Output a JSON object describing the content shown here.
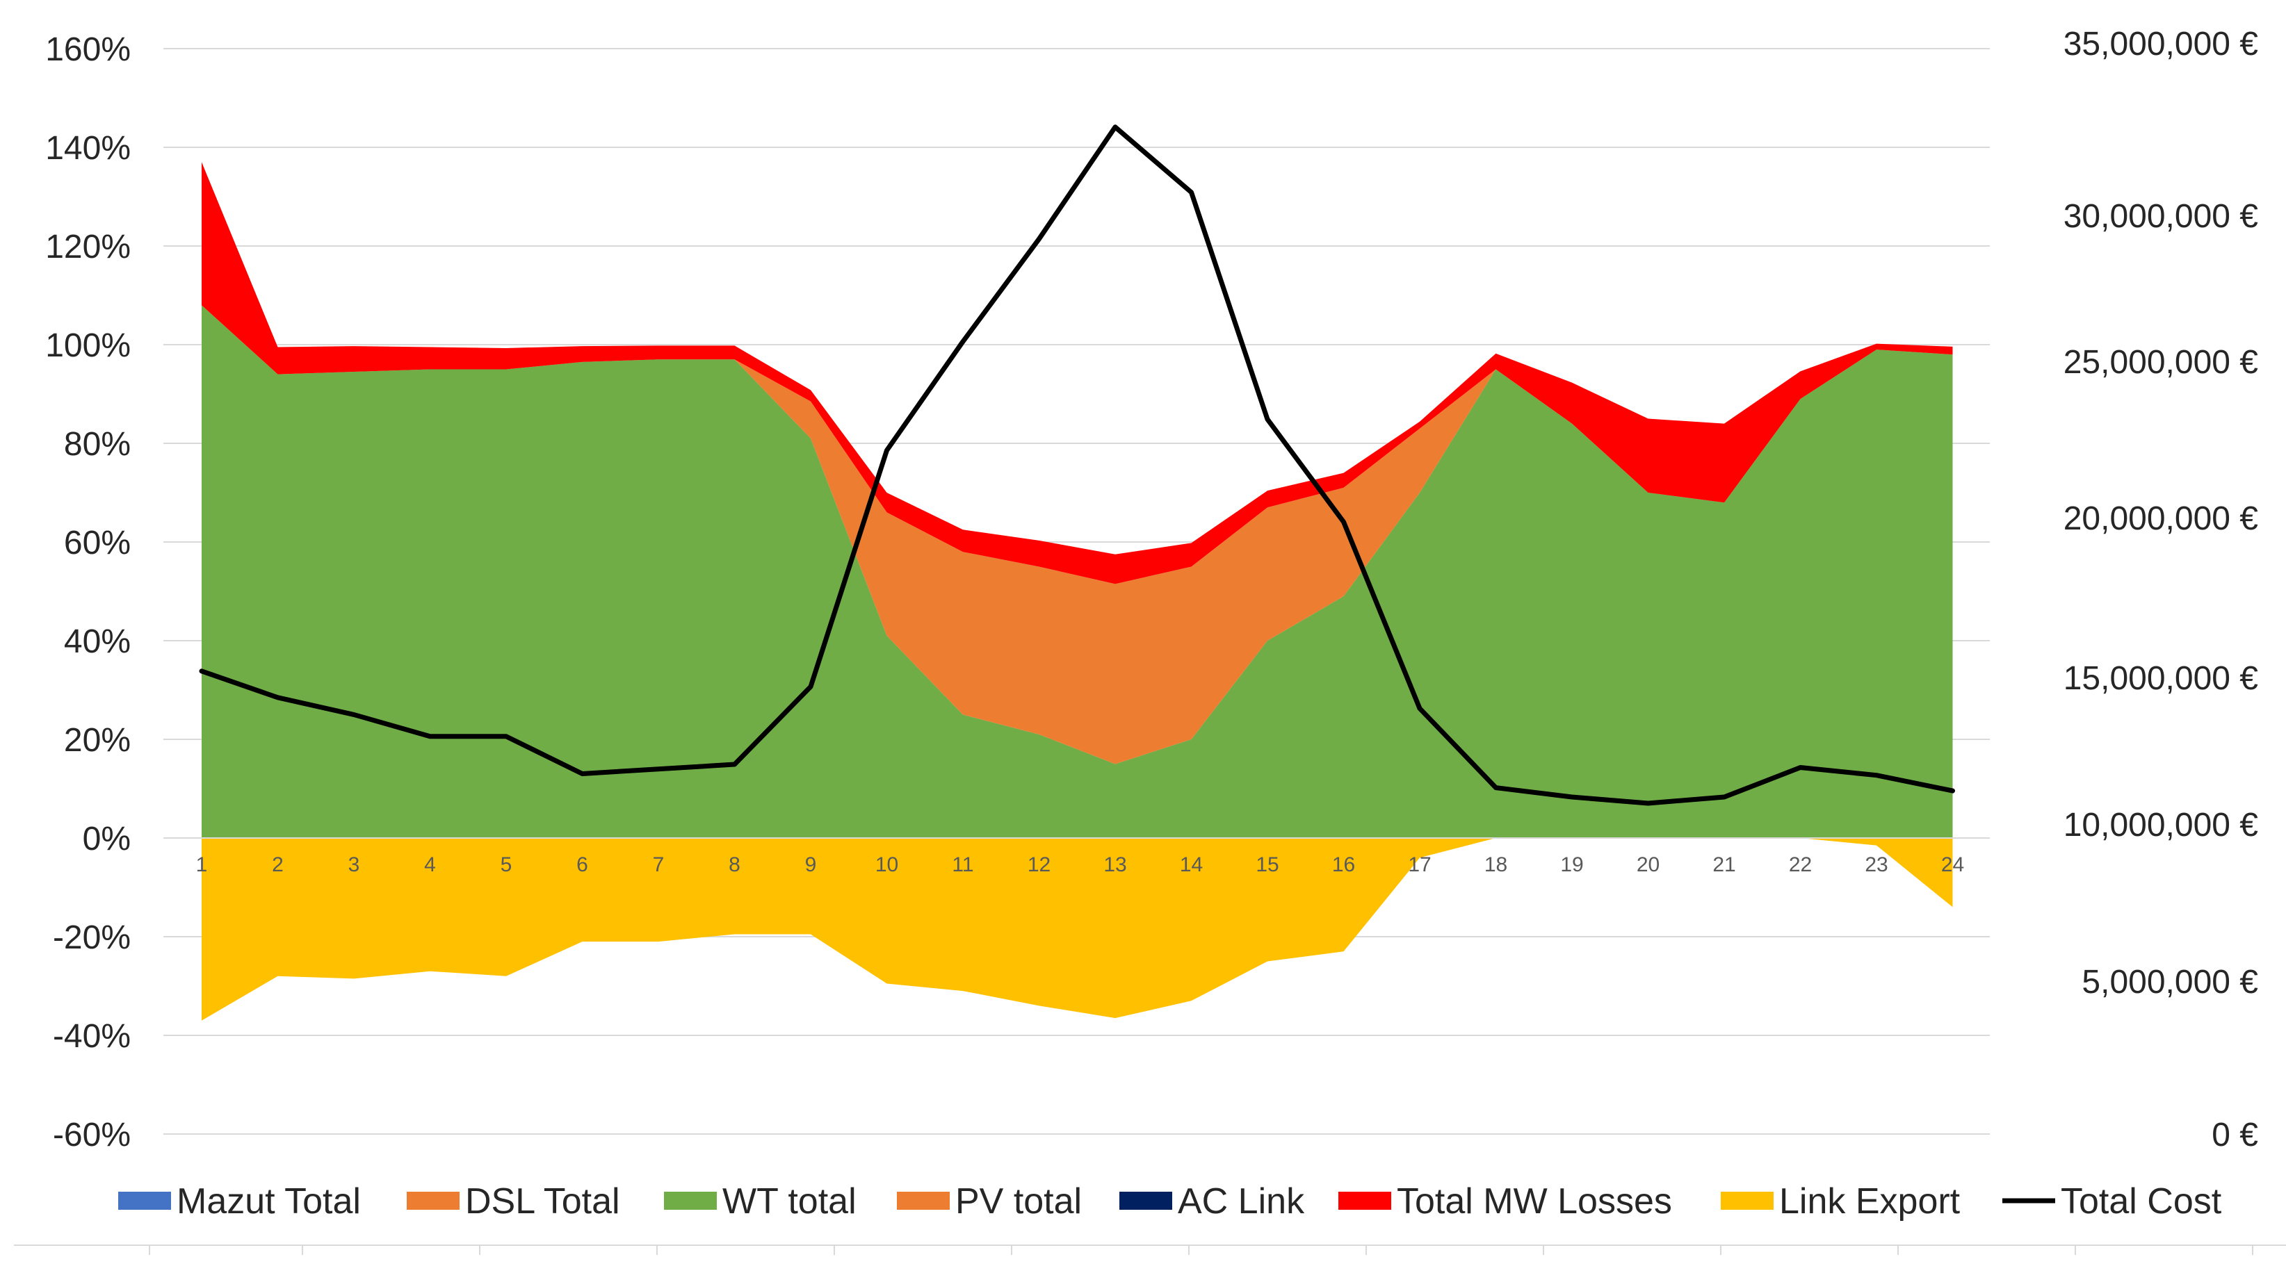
{
  "chart_data": {
    "type": "area",
    "title": "",
    "x": [
      "1",
      "2",
      "3",
      "4",
      "5",
      "6",
      "7",
      "8",
      "9",
      "10",
      "11",
      "12",
      "13",
      "14",
      "15",
      "16",
      "17",
      "18",
      "19",
      "20",
      "21",
      "22",
      "23",
      "24"
    ],
    "y_left": {
      "min": -60,
      "max": 160,
      "step": 20,
      "ticks": [
        "160%",
        "140%",
        "120%",
        "100%",
        "80%",
        "60%",
        "40%",
        "20%",
        "0%",
        "-20%",
        "-40%",
        "-60%"
      ]
    },
    "y_right": {
      "ticks": [
        "35,000,000 €",
        "30,000,000 €",
        "25,000,000 €",
        "20,000,000 €",
        "15,000,000 €",
        "10,000,000 €",
        "5,000,000 €",
        "0 €"
      ]
    },
    "series": [
      {
        "name": "Mazut Total",
        "color": "#4472C4",
        "values": [
          0,
          0,
          0,
          0,
          0,
          0,
          0,
          0,
          0,
          0,
          0,
          0,
          0,
          0,
          0,
          0,
          0,
          0,
          0,
          0,
          0,
          0,
          0,
          0
        ]
      },
      {
        "name": "DSL Total",
        "color": "#ED7D31",
        "values": [
          0,
          0,
          0,
          0,
          0,
          0,
          0,
          0,
          0,
          0,
          0,
          0,
          0,
          0,
          0,
          0,
          0,
          0,
          0,
          0,
          0,
          0,
          0,
          0
        ]
      },
      {
        "name": "WT total",
        "color": "#70AD47",
        "values": [
          108,
          94,
          94.5,
          95,
          95,
          96.5,
          97,
          97,
          81,
          41,
          25,
          21,
          15,
          20,
          40,
          49,
          70,
          95,
          84,
          70,
          68,
          89,
          99,
          98
        ]
      },
      {
        "name": "PV total",
        "color": "#ED7D31",
        "values": [
          0,
          0,
          0,
          0,
          0,
          0,
          0,
          0,
          7.5,
          25,
          33,
          34,
          36.5,
          35,
          27,
          22,
          13,
          0,
          0,
          0,
          0,
          0,
          0,
          0
        ]
      },
      {
        "name": "AC Link",
        "color": "#002060",
        "values": [
          0,
          0,
          0,
          0,
          0,
          0,
          0,
          0,
          0,
          0,
          0,
          0,
          0,
          0,
          0,
          0,
          0,
          0,
          0,
          0,
          0,
          0,
          0,
          0
        ]
      },
      {
        "name": "Total MW Losses",
        "color": "#FF0000",
        "values": [
          29,
          5.5,
          5.2,
          4.5,
          4.3,
          3.2,
          2.8,
          2.8,
          2.3,
          4,
          4.5,
          5.3,
          6,
          4.8,
          3.4,
          3,
          1.4,
          3.2,
          8.3,
          15,
          16,
          5.6,
          1.2,
          1.6
        ]
      },
      {
        "name": "Link Export",
        "color": "#FFC000",
        "values": [
          -37,
          -28,
          -28.5,
          -27,
          -28,
          -21,
          -21,
          -19.5,
          -19.5,
          -29.5,
          -31,
          -34,
          -36.5,
          -33,
          -25,
          -23,
          -4,
          0,
          0,
          0,
          0,
          0,
          -1.5,
          -14
        ]
      },
      {
        "name": "Total Cost",
        "color": "#000000",
        "type": "line",
        "axis": "right",
        "values": [
          14800000,
          13950000,
          13400000,
          12700000,
          12700000,
          11500000,
          11650000,
          11800000,
          14300000,
          21900000,
          25400000,
          28700000,
          32300000,
          30200000,
          22900000,
          19600000,
          13600000,
          11050000,
          10750000,
          10550000,
          10750000,
          11700000,
          11450000,
          10950000
        ]
      }
    ],
    "legend": [
      "Mazut Total",
      "DSL Total",
      "WT total",
      "PV total",
      "AC Link",
      "Total MW Losses",
      "Link Export",
      "Total Cost"
    ],
    "legend_position": "bottom",
    "grid": true
  }
}
